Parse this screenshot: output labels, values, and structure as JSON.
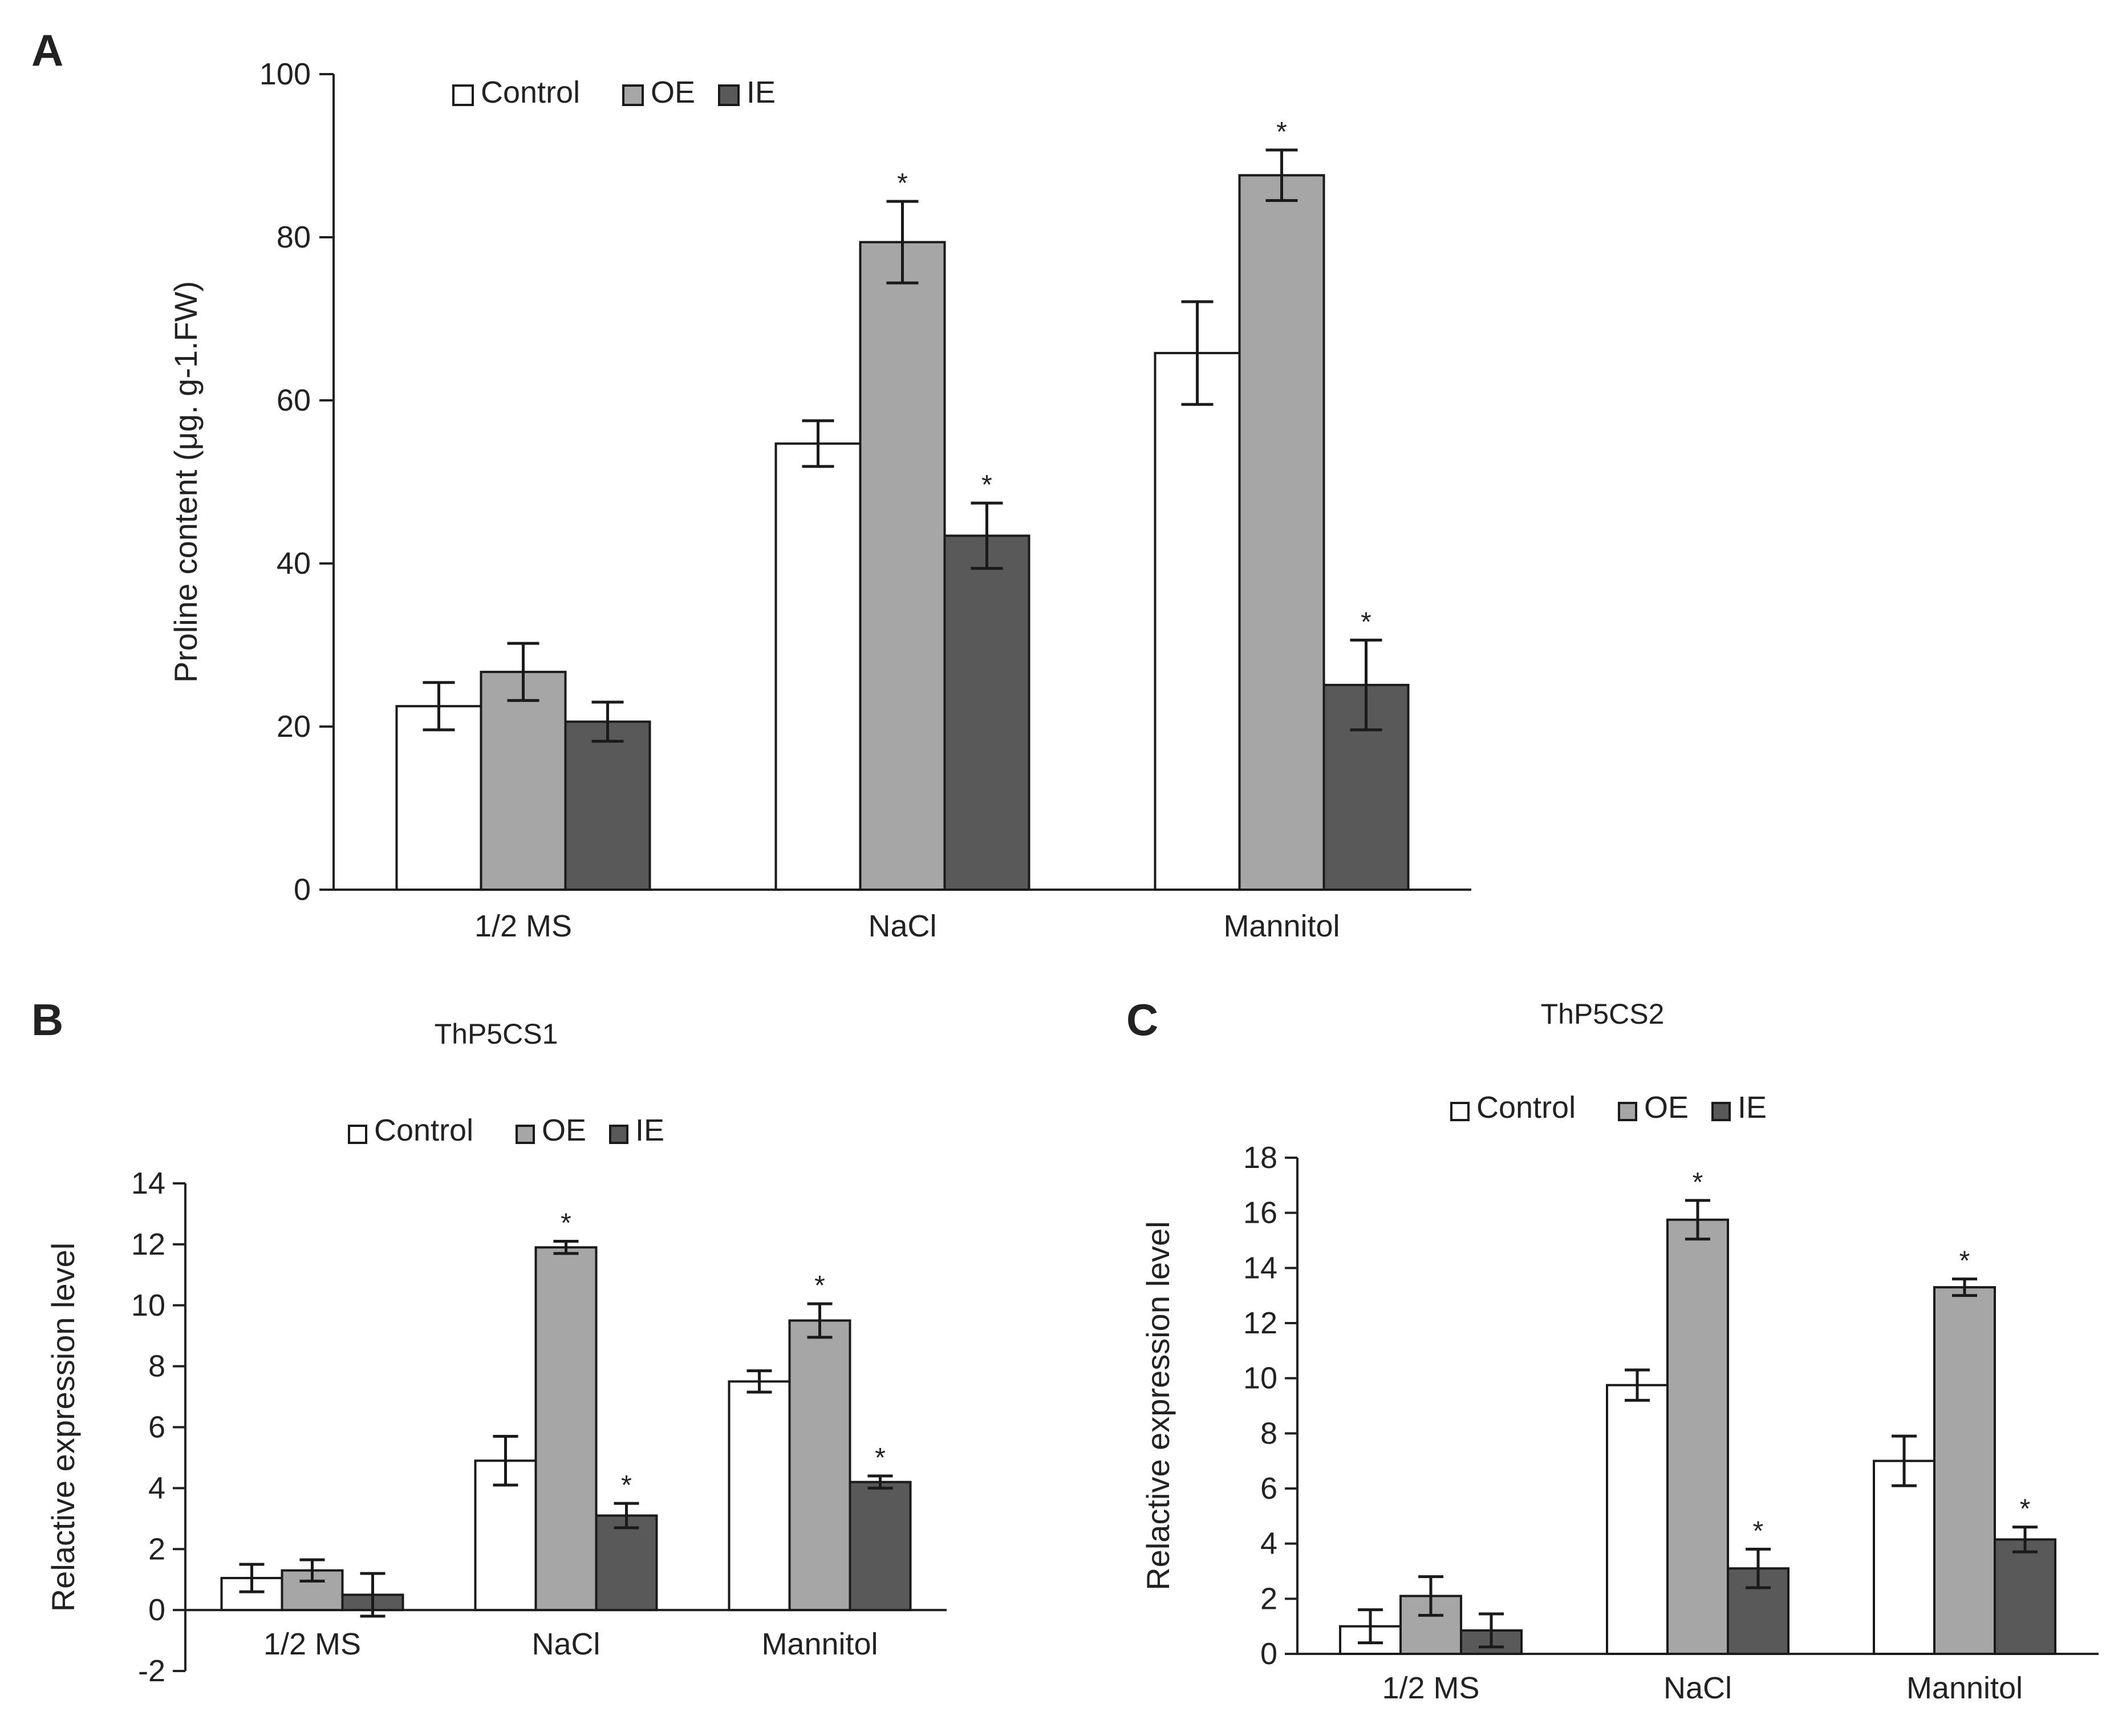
{
  "colors": {
    "control": "#ffffff",
    "oe": "#a6a6a6",
    "ie": "#595959",
    "axis": "#222222"
  },
  "chart_data": [
    {
      "panel": "A",
      "type": "bar",
      "title": "",
      "ylabel": "Proline content (μg. g-1.FW)",
      "xlabel": "",
      "ylim": [
        0,
        100
      ],
      "yticks": [
        0,
        20,
        40,
        60,
        80,
        100
      ],
      "categories": [
        "1/2 MS",
        "NaCl",
        "Mannitol"
      ],
      "legend_position": "top-left",
      "series": [
        {
          "name": "Control",
          "color_key": "control",
          "values": [
            22.5,
            54.7,
            65.8
          ],
          "errors": [
            2.9,
            2.8,
            6.3
          ],
          "significant": [
            false,
            false,
            false
          ]
        },
        {
          "name": "OE",
          "color_key": "oe",
          "values": [
            26.7,
            79.4,
            87.6
          ],
          "errors": [
            3.5,
            5.0,
            3.1
          ],
          "significant": [
            false,
            true,
            true
          ]
        },
        {
          "name": "IE",
          "color_key": "ie",
          "values": [
            20.6,
            43.4,
            25.1
          ],
          "errors": [
            2.4,
            4.0,
            5.5
          ],
          "significant": [
            false,
            true,
            true
          ]
        }
      ],
      "significance_marker": "*"
    },
    {
      "panel": "B",
      "type": "bar",
      "title": "ThP5CS1",
      "ylabel": "Relactive  expression level",
      "xlabel": "",
      "ylim": [
        -2,
        14
      ],
      "yticks": [
        -2,
        0,
        2,
        4,
        6,
        8,
        10,
        12,
        14
      ],
      "categories": [
        "1/2 MS",
        "NaCl",
        "Mannitol"
      ],
      "legend_position": "top",
      "series": [
        {
          "name": "Control",
          "color_key": "control",
          "values": [
            1.05,
            4.9,
            7.5
          ],
          "errors": [
            0.45,
            0.8,
            0.35
          ],
          "significant": [
            false,
            false,
            false
          ]
        },
        {
          "name": "OE",
          "color_key": "oe",
          "values": [
            1.3,
            11.9,
            9.5
          ],
          "errors": [
            0.35,
            0.2,
            0.55
          ],
          "significant": [
            false,
            true,
            true
          ]
        },
        {
          "name": "IE",
          "color_key": "ie",
          "values": [
            0.5,
            3.1,
            4.2
          ],
          "errors": [
            0.7,
            0.4,
            0.2
          ],
          "significant": [
            false,
            true,
            true
          ]
        }
      ],
      "significance_marker": "*"
    },
    {
      "panel": "C",
      "type": "bar",
      "title": "ThP5CS2",
      "ylabel": "Relactive  expression level",
      "xlabel": "",
      "ylim": [
        0,
        18
      ],
      "yticks": [
        0,
        2,
        4,
        6,
        8,
        10,
        12,
        14,
        16,
        18
      ],
      "categories": [
        "1/2 MS",
        "NaCl",
        "Mannitol"
      ],
      "legend_position": "top",
      "series": [
        {
          "name": "Control",
          "color_key": "control",
          "values": [
            1.0,
            9.75,
            7.0
          ],
          "errors": [
            0.6,
            0.55,
            0.9
          ],
          "significant": [
            false,
            false,
            false
          ]
        },
        {
          "name": "OE",
          "color_key": "oe",
          "values": [
            2.1,
            15.75,
            13.3
          ],
          "errors": [
            0.7,
            0.7,
            0.3
          ],
          "significant": [
            false,
            true,
            true
          ]
        },
        {
          "name": "IE",
          "color_key": "ie",
          "values": [
            0.85,
            3.1,
            4.15
          ],
          "errors": [
            0.6,
            0.7,
            0.45
          ],
          "significant": [
            false,
            true,
            true
          ]
        }
      ],
      "significance_marker": "*"
    }
  ]
}
